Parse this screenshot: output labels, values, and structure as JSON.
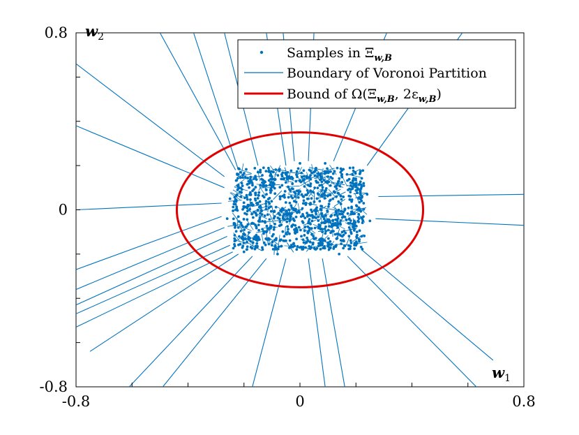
{
  "chart_data": {
    "type": "scatter",
    "xlim": [
      -0.8,
      0.8
    ],
    "ylim": [
      -0.8,
      0.8
    ],
    "xticks": [
      -0.8,
      -0.6,
      -0.4,
      -0.2,
      0,
      0.2,
      0.4,
      0.6,
      0.8
    ],
    "yticks": [
      -0.8,
      -0.6,
      -0.4,
      -0.2,
      0,
      0.2,
      0.4,
      0.6,
      0.8
    ],
    "x_tick_labels": [
      {
        "value": -0.8,
        "text": "-0.8"
      },
      {
        "value": 0,
        "text": "0"
      },
      {
        "value": 0.8,
        "text": "0.8"
      }
    ],
    "y_tick_labels": [
      {
        "value": -0.8,
        "text": "-0.8"
      },
      {
        "value": 0,
        "text": "0"
      },
      {
        "value": 0.8,
        "text": "0.8"
      }
    ],
    "xlabel": {
      "main": "w",
      "sub": "1"
    },
    "ylabel": {
      "main": "w",
      "sub": "2"
    },
    "grid": false,
    "legend_position": "top-right",
    "colors": {
      "samples": "#0072BD",
      "boundary": "#0072BD",
      "bound": "#E00000"
    },
    "series": [
      {
        "name": "Samples in Ξ_{w,B}",
        "legend": {
          "prefix": "Samples in Ξ",
          "sub": "w,B",
          "suffix": ""
        },
        "kind": "scatter",
        "sample_region": {
          "x": [
            -0.24,
            0.23
          ],
          "y": [
            -0.18,
            0.19
          ]
        },
        "points": [
          [
            -0.22,
            0.16
          ],
          [
            -0.18,
            0.12
          ],
          [
            -0.15,
            0.17
          ],
          [
            -0.1,
            0.14
          ],
          [
            -0.05,
            0.16
          ],
          [
            0.0,
            0.13
          ],
          [
            0.05,
            0.17
          ],
          [
            0.1,
            0.15
          ],
          [
            0.15,
            0.16
          ],
          [
            0.2,
            0.12
          ],
          [
            -0.21,
            0.08
          ],
          [
            -0.16,
            0.05
          ],
          [
            -0.12,
            0.09
          ],
          [
            -0.07,
            0.06
          ],
          [
            -0.02,
            0.08
          ],
          [
            0.03,
            0.05
          ],
          [
            0.08,
            0.09
          ],
          [
            0.13,
            0.06
          ],
          [
            0.18,
            0.08
          ],
          [
            0.22,
            0.04
          ],
          [
            -0.23,
            0.0
          ],
          [
            -0.19,
            -0.02
          ],
          [
            -0.14,
            0.01
          ],
          [
            -0.09,
            -0.03
          ],
          [
            -0.04,
            0.0
          ],
          [
            0.01,
            -0.02
          ],
          [
            0.06,
            0.01
          ],
          [
            0.11,
            -0.03
          ],
          [
            0.16,
            0.0
          ],
          [
            0.21,
            -0.02
          ],
          [
            -0.22,
            -0.08
          ],
          [
            -0.17,
            -0.06
          ],
          [
            -0.12,
            -0.1
          ],
          [
            -0.07,
            -0.07
          ],
          [
            -0.02,
            -0.09
          ],
          [
            0.03,
            -0.06
          ],
          [
            0.08,
            -0.1
          ],
          [
            0.13,
            -0.07
          ],
          [
            0.18,
            -0.09
          ],
          [
            0.22,
            -0.12
          ],
          [
            -0.2,
            -0.15
          ],
          [
            -0.15,
            -0.13
          ],
          [
            -0.1,
            -0.16
          ],
          [
            -0.05,
            -0.14
          ],
          [
            0.0,
            -0.17
          ],
          [
            0.05,
            -0.13
          ],
          [
            0.1,
            -0.15
          ],
          [
            0.15,
            -0.14
          ],
          [
            0.2,
            -0.16
          ],
          [
            -0.13,
            0.19
          ],
          [
            0.0,
            0.21
          ],
          [
            0.09,
            0.21
          ],
          [
            -0.25,
            0.05
          ],
          [
            -0.26,
            -0.04
          ],
          [
            0.24,
            0.07
          ],
          [
            0.25,
            -0.05
          ],
          [
            0.14,
            -0.2
          ],
          [
            -0.08,
            -0.2
          ],
          [
            0.19,
            0.19
          ],
          [
            -0.2,
            -0.19
          ]
        ]
      },
      {
        "name": "Boundary of Voronoi Partition",
        "legend": {
          "prefix": "Boundary of Voronoi Partition",
          "sub": "",
          "suffix": ""
        },
        "kind": "line",
        "segments": [
          [
            [
              -0.23,
              0.18
            ],
            [
              -0.5,
              0.8
            ]
          ],
          [
            [
              -0.22,
              0.18
            ],
            [
              -0.38,
              0.8
            ]
          ],
          [
            [
              -0.15,
              0.2
            ],
            [
              -0.27,
              0.8
            ]
          ],
          [
            [
              -0.05,
              0.2
            ],
            [
              -0.12,
              0.8
            ]
          ],
          [
            [
              -0.27,
              0.15
            ],
            [
              -0.8,
              0.66
            ]
          ],
          [
            [
              -0.27,
              0.1
            ],
            [
              -0.8,
              0.38
            ]
          ],
          [
            [
              -0.28,
              0.03
            ],
            [
              -0.8,
              0.0
            ]
          ],
          [
            [
              -0.28,
              -0.03
            ],
            [
              -0.8,
              -0.27
            ]
          ],
          [
            [
              -0.27,
              -0.08
            ],
            [
              -0.8,
              -0.36
            ]
          ],
          [
            [
              -0.26,
              -0.12
            ],
            [
              -0.8,
              -0.43
            ]
          ],
          [
            [
              -0.25,
              -0.16
            ],
            [
              -0.8,
              -0.47
            ]
          ],
          [
            [
              -0.24,
              -0.19
            ],
            [
              -0.8,
              -0.53
            ]
          ],
          [
            [
              -0.22,
              -0.2
            ],
            [
              -0.75,
              -0.64
            ]
          ],
          [
            [
              -0.17,
              -0.21
            ],
            [
              -0.61,
              -0.8
            ]
          ],
          [
            [
              -0.12,
              -0.22
            ],
            [
              -0.49,
              -0.8
            ]
          ],
          [
            [
              -0.05,
              -0.22
            ],
            [
              -0.17,
              -0.8
            ]
          ],
          [
            [
              0.03,
              -0.22
            ],
            [
              0.09,
              -0.8
            ]
          ],
          [
            [
              0.08,
              -0.22
            ],
            [
              0.16,
              -0.8
            ]
          ],
          [
            [
              0.17,
              -0.21
            ],
            [
              0.63,
              -0.8
            ]
          ],
          [
            [
              0.22,
              -0.18
            ],
            [
              0.69,
              -0.68
            ]
          ],
          [
            [
              0.28,
              0.06
            ],
            [
              0.8,
              0.07
            ]
          ],
          [
            [
              0.27,
              -0.04
            ],
            [
              0.8,
              -0.07
            ]
          ],
          [
            [
              0.24,
              0.2
            ],
            [
              0.58,
              0.8
            ]
          ],
          [
            [
              0.12,
              0.22
            ],
            [
              0.31,
              0.8
            ]
          ],
          [
            [
              0.03,
              0.22
            ],
            [
              0.05,
              0.8
            ]
          ],
          [
            [
              -0.02,
              0.22
            ],
            [
              -0.06,
              0.8
            ]
          ]
        ]
      },
      {
        "name": "Bound of Ω(Ξ_{w,B}, 2ε_{w,B})",
        "legend": {
          "prefix": "Bound of Ω(Ξ",
          "sub": "w,B",
          "suffix": ", 2ε"
        },
        "kind": "ellipse",
        "center": [
          0.0,
          0.0
        ],
        "radii": [
          0.44,
          0.35
        ]
      }
    ]
  }
}
